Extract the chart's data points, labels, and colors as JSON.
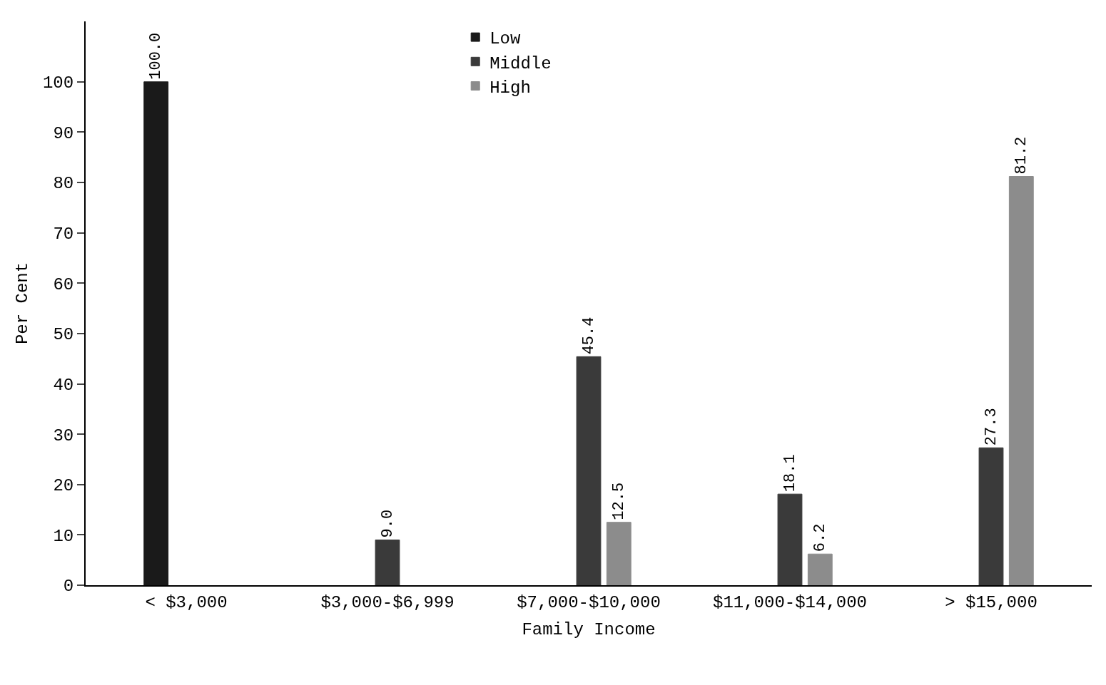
{
  "chart_data": {
    "type": "bar",
    "xlabel": "Family Income",
    "ylabel": "Per Cent",
    "categories": [
      "< $3,000",
      "$3,000-$6,999",
      "$7,000-$10,000",
      "$11,000-$14,000",
      "> $15,000"
    ],
    "series": [
      {
        "name": "Low",
        "color": "#1a1a1a",
        "values": [
          100,
          null,
          null,
          null,
          null
        ],
        "value_labels": [
          "100.0",
          null,
          null,
          null,
          null
        ]
      },
      {
        "name": "Middle",
        "color": "#3a3a3a",
        "values": [
          null,
          9.0,
          45.4,
          18.1,
          27.3
        ],
        "value_labels": [
          null,
          "9.0",
          "45.4",
          "18.1",
          "27.3"
        ]
      },
      {
        "name": "High",
        "color": "#8c8c8c",
        "values": [
          null,
          null,
          12.5,
          6.2,
          81.2
        ],
        "value_labels": [
          null,
          null,
          "12.5",
          "6.2",
          "81.2"
        ]
      }
    ],
    "ylim": [
      0,
      112
    ],
    "yticks": [
      0,
      10,
      20,
      30,
      40,
      50,
      60,
      70,
      80,
      90,
      100
    ],
    "legend": "top"
  }
}
